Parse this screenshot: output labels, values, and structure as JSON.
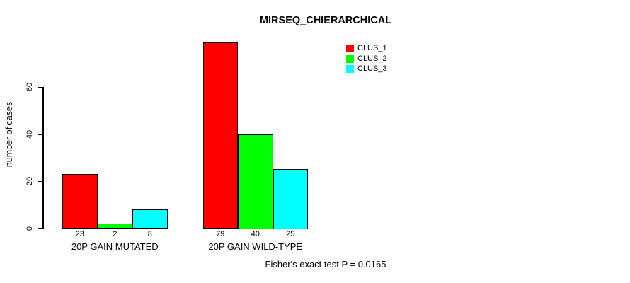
{
  "title": "MIRSEQ_CHIERARCHICAL",
  "chart_data": {
    "type": "bar",
    "title": "MIRSEQ_CHIERARCHICAL",
    "xlabel": "",
    "ylabel": "number of cases",
    "ylim": [
      0,
      60
    ],
    "yticks": [
      0,
      20,
      40,
      60
    ],
    "grid": false,
    "categories": [
      "20P GAIN MUTATED",
      "20P GAIN WILD-TYPE"
    ],
    "series": [
      {
        "name": "CLUS_1",
        "color": "#FF0000",
        "values": [
          23,
          79
        ]
      },
      {
        "name": "CLUS_2",
        "color": "#00FF00",
        "values": [
          2,
          40
        ]
      },
      {
        "name": "CLUS_3",
        "color": "#00FFFF",
        "values": [
          8,
          25
        ]
      }
    ],
    "bar_value_labels": [
      [
        "23",
        "2",
        "8"
      ],
      [
        "79",
        "40",
        "25"
      ]
    ],
    "legend": {
      "position": "top-right-inside",
      "entries": [
        {
          "label": "CLUS_1",
          "color": "#FF0000"
        },
        {
          "label": "CLUS_2",
          "color": "#00FF00"
        },
        {
          "label": "CLUS_3",
          "color": "#00FFFF"
        }
      ]
    },
    "annotation": "Fisher's exact test P = 0.0165",
    "colors": {
      "bar_border": "#000000",
      "text": "#000000",
      "background": "#FFFFFF"
    }
  }
}
